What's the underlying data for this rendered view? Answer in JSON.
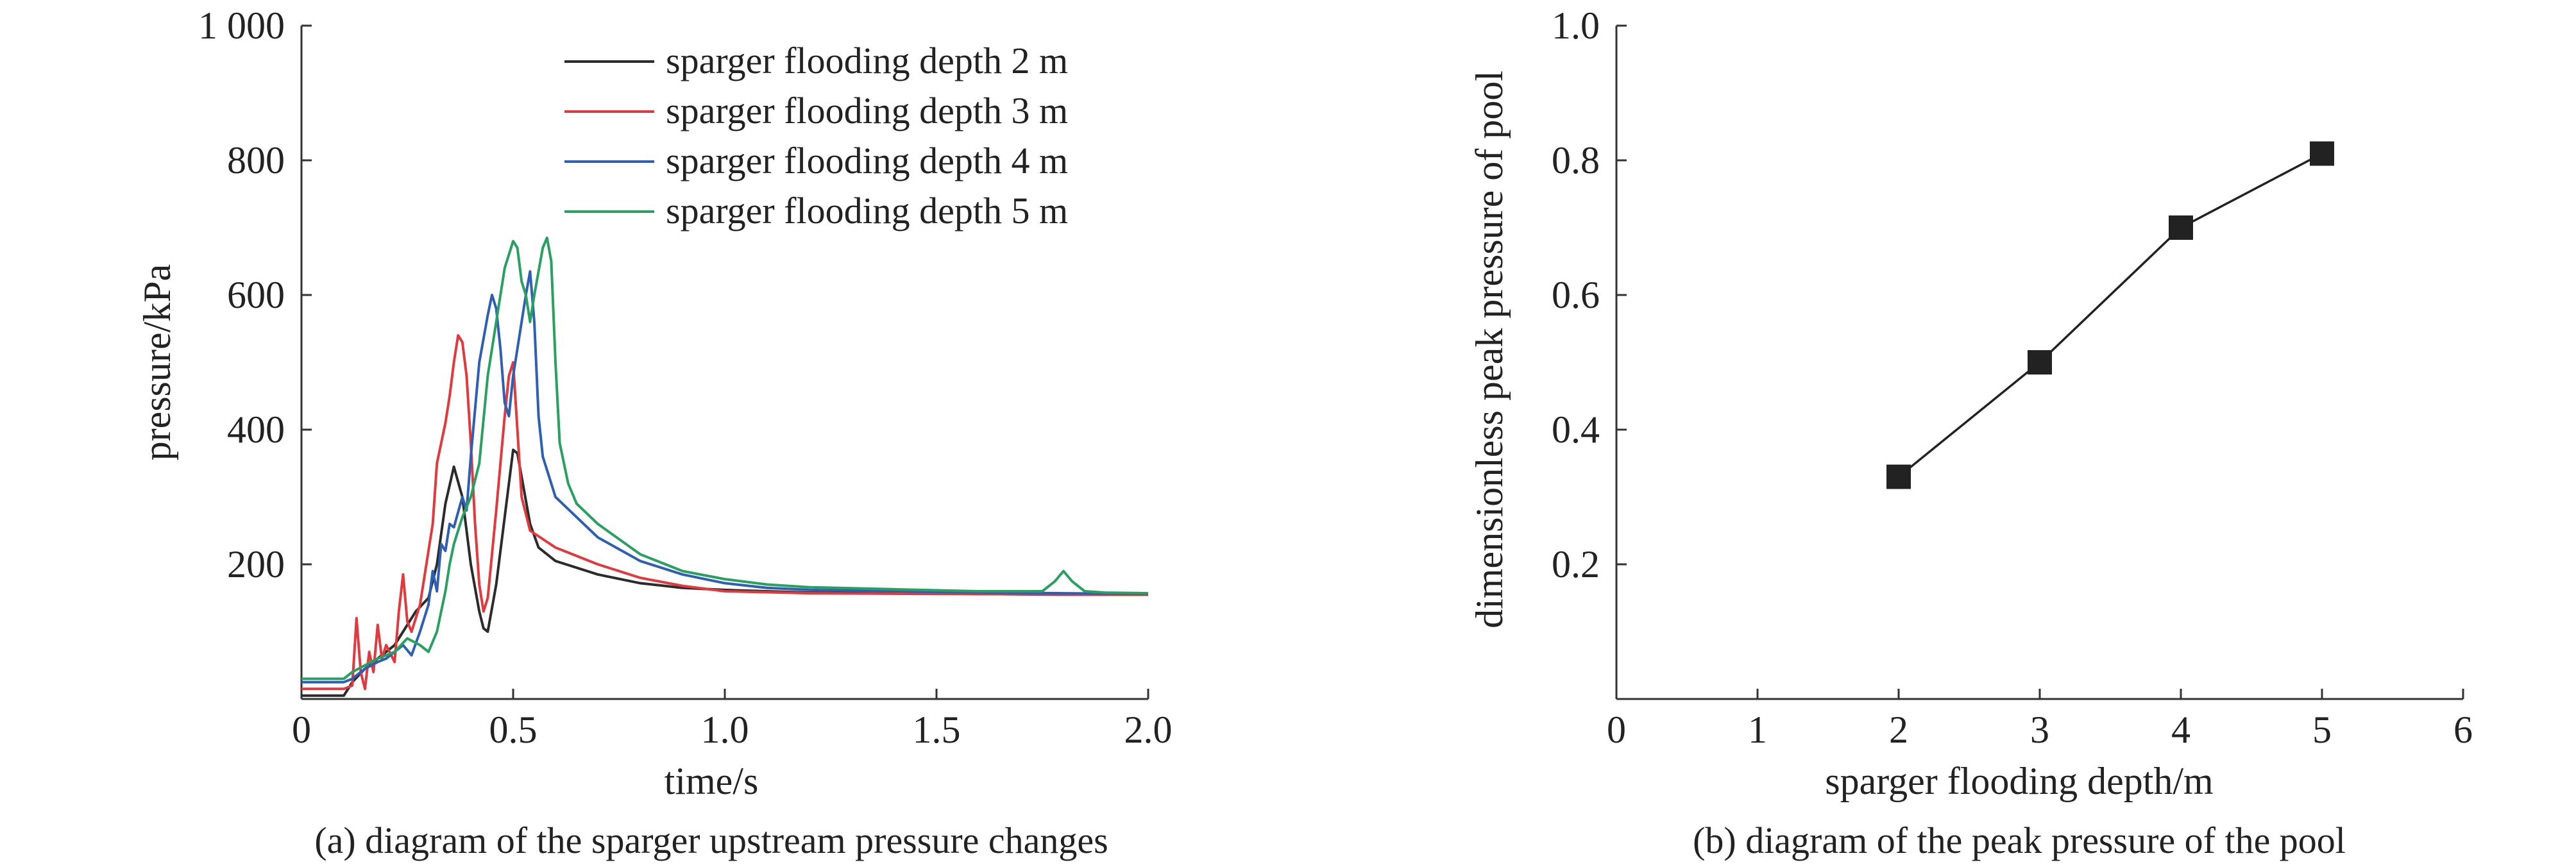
{
  "chart_data": [
    {
      "type": "line",
      "caption": "(a) diagram of the sparger upstream pressure changes",
      "xlabel": "time/s",
      "ylabel": "pressure/kPa",
      "xlim": [
        0,
        2.0
      ],
      "ylim": [
        0,
        1000
      ],
      "xticks": [
        {
          "v": 0,
          "label": "0"
        },
        {
          "v": 0.5,
          "label": "0.5"
        },
        {
          "v": 1.0,
          "label": "1.0"
        },
        {
          "v": 1.5,
          "label": "1.5"
        },
        {
          "v": 2.0,
          "label": "2.0"
        }
      ],
      "yticks": [
        {
          "v": 200,
          "label": "200"
        },
        {
          "v": 400,
          "label": "400"
        },
        {
          "v": 600,
          "label": "600"
        },
        {
          "v": 800,
          "label": "800"
        },
        {
          "v": 1000,
          "label": "1 000"
        }
      ],
      "grid": false,
      "legend_position": "top-right",
      "series": [
        {
          "name": "sparger flooding depth 2 m",
          "color": "#2b2b2b",
          "points": [
            [
              0,
              5
            ],
            [
              0.08,
              5
            ],
            [
              0.1,
              5
            ],
            [
              0.12,
              25
            ],
            [
              0.15,
              45
            ],
            [
              0.18,
              60
            ],
            [
              0.2,
              70
            ],
            [
              0.22,
              80
            ],
            [
              0.25,
              110
            ],
            [
              0.27,
              130
            ],
            [
              0.3,
              150
            ],
            [
              0.32,
              200
            ],
            [
              0.34,
              290
            ],
            [
              0.36,
              345
            ],
            [
              0.38,
              300
            ],
            [
              0.4,
              200
            ],
            [
              0.42,
              130
            ],
            [
              0.43,
              105
            ],
            [
              0.44,
              100
            ],
            [
              0.46,
              170
            ],
            [
              0.48,
              270
            ],
            [
              0.5,
              370
            ],
            [
              0.51,
              365
            ],
            [
              0.52,
              330
            ],
            [
              0.54,
              260
            ],
            [
              0.56,
              225
            ],
            [
              0.6,
              205
            ],
            [
              0.7,
              185
            ],
            [
              0.8,
              172
            ],
            [
              0.9,
              165
            ],
            [
              1.0,
              162
            ],
            [
              1.2,
              158
            ],
            [
              1.4,
              157
            ],
            [
              1.6,
              156
            ],
            [
              1.8,
              155
            ],
            [
              2.0,
              155
            ]
          ]
        },
        {
          "name": "sparger flooding depth 3 m",
          "color": "#e0393e",
          "points": [
            [
              0,
              15
            ],
            [
              0.1,
              15
            ],
            [
              0.12,
              20
            ],
            [
              0.13,
              120
            ],
            [
              0.14,
              40
            ],
            [
              0.15,
              15
            ],
            [
              0.16,
              70
            ],
            [
              0.17,
              40
            ],
            [
              0.18,
              110
            ],
            [
              0.19,
              60
            ],
            [
              0.2,
              80
            ],
            [
              0.22,
              55
            ],
            [
              0.23,
              130
            ],
            [
              0.24,
              185
            ],
            [
              0.25,
              115
            ],
            [
              0.26,
              100
            ],
            [
              0.28,
              140
            ],
            [
              0.3,
              220
            ],
            [
              0.31,
              260
            ],
            [
              0.32,
              350
            ],
            [
              0.34,
              410
            ],
            [
              0.35,
              450
            ],
            [
              0.36,
              500
            ],
            [
              0.37,
              540
            ],
            [
              0.38,
              530
            ],
            [
              0.39,
              480
            ],
            [
              0.4,
              380
            ],
            [
              0.41,
              260
            ],
            [
              0.42,
              170
            ],
            [
              0.43,
              130
            ],
            [
              0.44,
              150
            ],
            [
              0.46,
              280
            ],
            [
              0.48,
              420
            ],
            [
              0.49,
              480
            ],
            [
              0.5,
              500
            ],
            [
              0.51,
              400
            ],
            [
              0.52,
              300
            ],
            [
              0.54,
              250
            ],
            [
              0.6,
              225
            ],
            [
              0.7,
              200
            ],
            [
              0.8,
              180
            ],
            [
              0.9,
              168
            ],
            [
              1.0,
              160
            ],
            [
              1.2,
              157
            ],
            [
              1.5,
              156
            ],
            [
              2.0,
              155
            ]
          ]
        },
        {
          "name": "sparger flooding depth 4 m",
          "color": "#2f5fb3",
          "points": [
            [
              0,
              25
            ],
            [
              0.1,
              25
            ],
            [
              0.12,
              30
            ],
            [
              0.15,
              45
            ],
            [
              0.18,
              55
            ],
            [
              0.2,
              60
            ],
            [
              0.22,
              70
            ],
            [
              0.24,
              80
            ],
            [
              0.26,
              65
            ],
            [
              0.28,
              100
            ],
            [
              0.3,
              140
            ],
            [
              0.31,
              190
            ],
            [
              0.32,
              160
            ],
            [
              0.33,
              230
            ],
            [
              0.34,
              220
            ],
            [
              0.35,
              260
            ],
            [
              0.36,
              255
            ],
            [
              0.38,
              300
            ],
            [
              0.39,
              280
            ],
            [
              0.4,
              360
            ],
            [
              0.42,
              500
            ],
            [
              0.44,
              570
            ],
            [
              0.45,
              600
            ],
            [
              0.46,
              580
            ],
            [
              0.47,
              520
            ],
            [
              0.48,
              440
            ],
            [
              0.49,
              420
            ],
            [
              0.5,
              480
            ],
            [
              0.52,
              560
            ],
            [
              0.53,
              600
            ],
            [
              0.54,
              635
            ],
            [
              0.55,
              560
            ],
            [
              0.56,
              420
            ],
            [
              0.57,
              360
            ],
            [
              0.6,
              300
            ],
            [
              0.65,
              270
            ],
            [
              0.7,
              240
            ],
            [
              0.8,
              205
            ],
            [
              0.9,
              185
            ],
            [
              1.0,
              172
            ],
            [
              1.1,
              165
            ],
            [
              1.2,
              162
            ],
            [
              1.4,
              160
            ],
            [
              1.6,
              158
            ],
            [
              1.8,
              157
            ],
            [
              2.0,
              156
            ]
          ]
        },
        {
          "name": "sparger flooding depth 5 m",
          "color": "#2aa060",
          "points": [
            [
              0,
              30
            ],
            [
              0.1,
              30
            ],
            [
              0.12,
              40
            ],
            [
              0.15,
              50
            ],
            [
              0.18,
              60
            ],
            [
              0.2,
              65
            ],
            [
              0.22,
              70
            ],
            [
              0.25,
              90
            ],
            [
              0.28,
              80
            ],
            [
              0.3,
              70
            ],
            [
              0.32,
              100
            ],
            [
              0.34,
              160
            ],
            [
              0.35,
              200
            ],
            [
              0.36,
              230
            ],
            [
              0.37,
              250
            ],
            [
              0.38,
              270
            ],
            [
              0.4,
              300
            ],
            [
              0.42,
              350
            ],
            [
              0.44,
              480
            ],
            [
              0.46,
              560
            ],
            [
              0.48,
              640
            ],
            [
              0.5,
              680
            ],
            [
              0.51,
              670
            ],
            [
              0.52,
              620
            ],
            [
              0.53,
              600
            ],
            [
              0.54,
              560
            ],
            [
              0.55,
              600
            ],
            [
              0.57,
              670
            ],
            [
              0.58,
              685
            ],
            [
              0.59,
              650
            ],
            [
              0.6,
              500
            ],
            [
              0.61,
              380
            ],
            [
              0.63,
              320
            ],
            [
              0.65,
              290
            ],
            [
              0.7,
              260
            ],
            [
              0.8,
              215
            ],
            [
              0.9,
              190
            ],
            [
              1.0,
              178
            ],
            [
              1.1,
              170
            ],
            [
              1.2,
              166
            ],
            [
              1.4,
              163
            ],
            [
              1.6,
              160
            ],
            [
              1.75,
              160
            ],
            [
              1.78,
              175
            ],
            [
              1.8,
              190
            ],
            [
              1.82,
              175
            ],
            [
              1.85,
              160
            ],
            [
              1.9,
              158
            ],
            [
              2.0,
              157
            ]
          ]
        }
      ]
    },
    {
      "type": "line",
      "caption": "(b) diagram of the peak pressure of the pool",
      "xlabel": "sparger flooding depth/m",
      "ylabel": "dimensionless peak pressure of pool",
      "xlim": [
        0,
        6
      ],
      "ylim": [
        0,
        1.0
      ],
      "xticks": [
        {
          "v": 0,
          "label": "0"
        },
        {
          "v": 1,
          "label": "1"
        },
        {
          "v": 2,
          "label": "2"
        },
        {
          "v": 3,
          "label": "3"
        },
        {
          "v": 4,
          "label": "4"
        },
        {
          "v": 5,
          "label": "5"
        },
        {
          "v": 6,
          "label": "6"
        }
      ],
      "yticks": [
        {
          "v": 0.2,
          "label": "0.2"
        },
        {
          "v": 0.4,
          "label": "0.4"
        },
        {
          "v": 0.6,
          "label": "0.6"
        },
        {
          "v": 0.8,
          "label": "0.8"
        },
        {
          "v": 1.0,
          "label": "1.0"
        }
      ],
      "grid": false,
      "marker": "square",
      "series": [
        {
          "color": "#222222",
          "points": [
            [
              2,
              0.33
            ],
            [
              3,
              0.5
            ],
            [
              4,
              0.7
            ],
            [
              5,
              0.81
            ]
          ]
        }
      ]
    }
  ]
}
